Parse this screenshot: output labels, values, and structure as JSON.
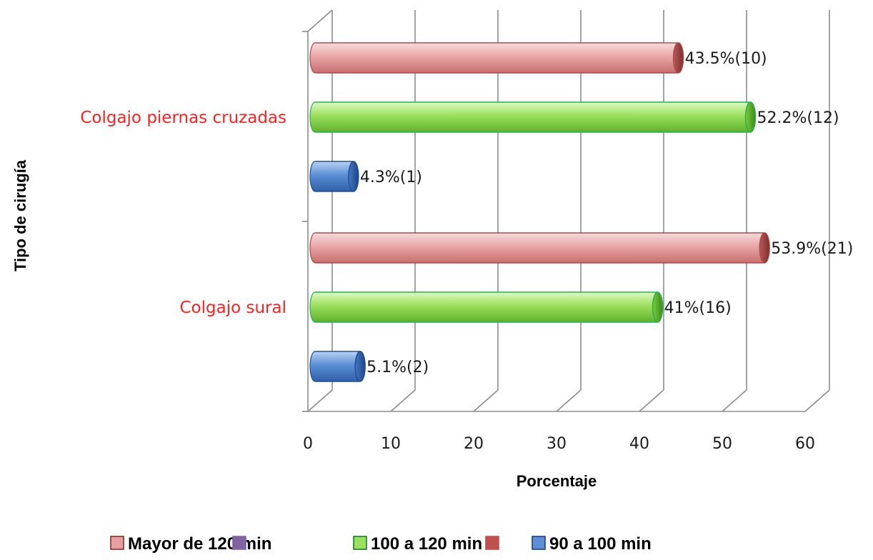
{
  "chart_data": {
    "type": "bar",
    "orientation": "horizontal",
    "three_d": true,
    "xlabel": "Porcentaje",
    "ylabel": "Tipo de cirugía",
    "xlim": [
      0,
      60
    ],
    "xticks": [
      0,
      10,
      20,
      30,
      40,
      50,
      60
    ],
    "grid": true,
    "legend_position": "bottom",
    "category_label_color": "#ff2020",
    "categories": [
      "Colgajo piernas cruzadas",
      "Colgajo sural"
    ],
    "series": [
      {
        "name": "Mayor de 120 min",
        "color": "#e6a0a0",
        "edge": "#b04848",
        "values": [
          43.5,
          53.9
        ],
        "labels": [
          "43.5%(10)",
          "53.9%(21)"
        ]
      },
      {
        "name": "100 a 120 min",
        "color": "#9be05c",
        "edge": "#22b14c",
        "values": [
          52.2,
          41
        ],
        "labels": [
          "52.2%(12)",
          "41%(16)"
        ]
      },
      {
        "name": "90 a 100 min",
        "color": "#5b8fd6",
        "edge": "#1f4e96",
        "values": [
          4.3,
          5.1
        ],
        "labels": [
          "4.3%(1)",
          "5.1%(2)"
        ]
      }
    ],
    "legend": [
      {
        "name": "Mayor de 120 min",
        "color": "#e6a0a0",
        "edge": "#8b2e2e"
      },
      {
        "name": "",
        "color": "#8064a2",
        "edge": "#8064a2"
      },
      {
        "name": "100 a 120 min",
        "color": "#9be05c",
        "edge": "#1a7a30"
      },
      {
        "name": "",
        "color": "#c0504d",
        "edge": "#c0504d"
      },
      {
        "name": "90 a 100 min",
        "color": "#5b8fd6",
        "edge": "#1f3f7a"
      }
    ]
  }
}
